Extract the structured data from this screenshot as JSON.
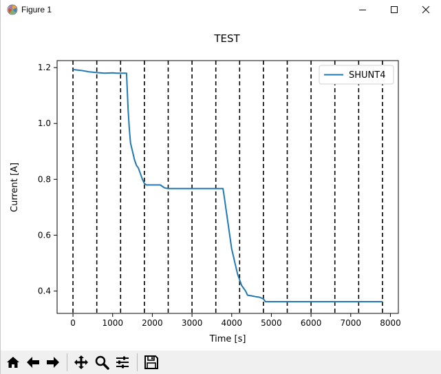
{
  "window": {
    "title": "Figure 1",
    "controls": [
      "minimize",
      "maximize",
      "close"
    ]
  },
  "toolbar": {
    "buttons": [
      {
        "name": "home",
        "icon": "home-icon"
      },
      {
        "name": "back",
        "icon": "arrow-left-icon"
      },
      {
        "name": "forward",
        "icon": "arrow-right-icon"
      },
      {
        "name": "pan",
        "icon": "move-icon"
      },
      {
        "name": "zoom",
        "icon": "magnifier-icon"
      },
      {
        "name": "configure-subplots",
        "icon": "sliders-icon"
      },
      {
        "name": "save",
        "icon": "floppy-disk-icon"
      }
    ]
  },
  "chart_data": {
    "type": "line",
    "title": "TEST",
    "xlabel": "Time [s]",
    "ylabel": "Current [A]",
    "xlim": [
      -400,
      8200
    ],
    "ylim": [
      0.32,
      1.225
    ],
    "xticks": [
      0,
      1000,
      2000,
      3000,
      4000,
      5000,
      6000,
      7000,
      8000
    ],
    "yticks": [
      0.4,
      0.6,
      0.8,
      1.0,
      1.2
    ],
    "xtick_labels": [
      "0",
      "1000",
      "2000",
      "3000",
      "4000",
      "5000",
      "6000",
      "7000",
      "8000"
    ],
    "ytick_labels": [
      "0.4",
      "0.6",
      "0.8",
      "1.0",
      "1.2"
    ],
    "grid": false,
    "legend": "top-right",
    "vlines": [
      0,
      600,
      1200,
      1800,
      2400,
      3000,
      3600,
      4200,
      4800,
      5400,
      6000,
      6600,
      7200,
      7800
    ],
    "vline_color": "#000000",
    "series": [
      {
        "name": "SHUNT4",
        "color": "#1f77b4",
        "x": [
          0,
          200,
          400,
          600,
          800,
          1000,
          1100,
          1350,
          1390,
          1420,
          1450,
          1500,
          1550,
          1600,
          1650,
          1700,
          1750,
          1800,
          1850,
          2000,
          2200,
          2300,
          2350,
          2400,
          2600,
          3000,
          3300,
          3600,
          3700,
          3780,
          3800,
          3850,
          3900,
          3950,
          4000,
          4050,
          4100,
          4150,
          4200,
          4250,
          4300,
          4350,
          4400,
          4500,
          4600,
          4700,
          4800,
          4850,
          5000,
          5500,
          6000,
          6500,
          7000,
          7500,
          7800
        ],
        "y": [
          1.193,
          1.19,
          1.185,
          1.182,
          1.18,
          1.181,
          1.18,
          1.18,
          1.05,
          0.98,
          0.93,
          0.9,
          0.87,
          0.85,
          0.84,
          0.82,
          0.8,
          0.785,
          0.78,
          0.78,
          0.78,
          0.77,
          0.768,
          0.767,
          0.767,
          0.767,
          0.767,
          0.767,
          0.767,
          0.767,
          0.75,
          0.7,
          0.65,
          0.6,
          0.55,
          0.52,
          0.49,
          0.46,
          0.44,
          0.42,
          0.41,
          0.4,
          0.385,
          0.383,
          0.38,
          0.378,
          0.372,
          0.362,
          0.362,
          0.362,
          0.362,
          0.362,
          0.362,
          0.362,
          0.362
        ]
      }
    ]
  }
}
